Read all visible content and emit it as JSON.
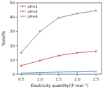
{
  "chart_data": {
    "type": "line",
    "x": [
      0.5,
      1.0,
      1.5,
      2.0,
      2.5
    ],
    "series": [
      {
        "name": "pH=1",
        "color": "#d45f5f",
        "marker": "square",
        "values": [
          6.0,
          9.5,
          13.0,
          15.0,
          16.0
        ]
      },
      {
        "name": "pH=2",
        "color": "#8c8c8c",
        "marker": "diamond",
        "values": [
          15.0,
          30.0,
          39.5,
          42.5,
          44.5
        ]
      },
      {
        "name": "pH=4",
        "color": "#6699cc",
        "marker": "triangle",
        "values": [
          0.8,
          1.2,
          1.5,
          1.7,
          1.9
        ]
      }
    ],
    "xlabel": "Electricity quantity/(F·mol⁻¹)",
    "ylabel": "Yield/%",
    "xlim": [
      0.4,
      2.65
    ],
    "ylim": [
      0,
      50
    ],
    "xticks": [
      0.5,
      {
        "value": 1.0,
        "label": "1.0"
      },
      1.5,
      {
        "value": 2.0,
        "label": "2.0"
      },
      2.5
    ],
    "yticks": [
      0,
      10,
      20,
      30,
      40,
      50
    ],
    "legend": "upper left"
  }
}
